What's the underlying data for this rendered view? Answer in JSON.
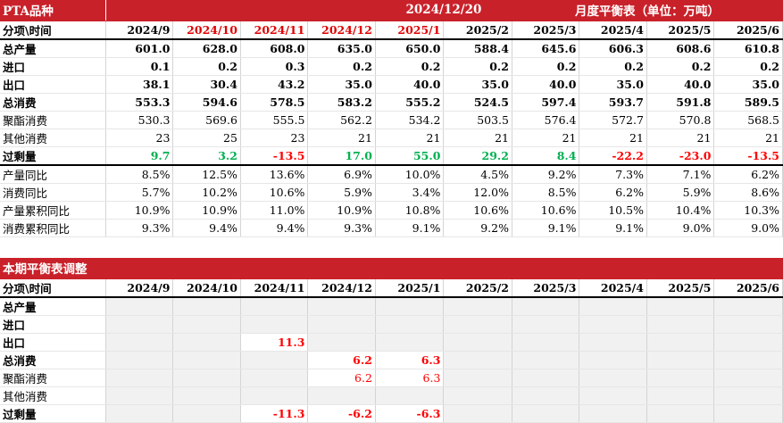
{
  "top": {
    "title": "PTA品种",
    "date": "2024/12/20",
    "subtitle": "月度平衡表（单位：万吨）",
    "header_label": "分项\\时间",
    "months": [
      "2024/9",
      "2024/10",
      "2024/11",
      "2024/12",
      "2025/1",
      "2025/2",
      "2025/3",
      "2025/4",
      "2025/5",
      "2025/6"
    ],
    "rows": [
      {
        "label": "总产量",
        "values": [
          "601.0",
          "628.0",
          "608.0",
          "635.0",
          "650.0",
          "588.4",
          "645.6",
          "606.3",
          "608.6",
          "610.8"
        ]
      },
      {
        "label": "进口",
        "values": [
          "0.1",
          "0.2",
          "0.3",
          "0.2",
          "0.2",
          "0.2",
          "0.2",
          "0.2",
          "0.2",
          "0.2"
        ]
      },
      {
        "label": "出口",
        "values": [
          "38.1",
          "30.4",
          "43.2",
          "35.0",
          "40.0",
          "35.0",
          "40.0",
          "35.0",
          "40.0",
          "35.0"
        ]
      },
      {
        "label": "总消费",
        "values": [
          "553.3",
          "594.6",
          "578.5",
          "583.2",
          "555.2",
          "524.5",
          "597.4",
          "593.7",
          "591.8",
          "589.5"
        ]
      },
      {
        "label": "聚酯消费",
        "values": [
          "530.3",
          "569.6",
          "555.5",
          "562.2",
          "534.2",
          "503.5",
          "576.4",
          "572.7",
          "570.8",
          "568.5"
        ]
      },
      {
        "label": "其他消费",
        "values": [
          "23",
          "25",
          "23",
          "21",
          "21",
          "21",
          "21",
          "21",
          "21",
          "21"
        ]
      },
      {
        "label": "过剩量",
        "values": [
          "9.7",
          "3.2",
          "-13.5",
          "17.0",
          "55.0",
          "29.2",
          "8.4",
          "-22.2",
          "-23.0",
          "-13.5"
        ]
      },
      {
        "label": "产量同比",
        "values": [
          "8.5%",
          "12.5%",
          "13.6%",
          "6.9%",
          "10.0%",
          "4.5%",
          "9.2%",
          "7.3%",
          "7.1%",
          "6.2%"
        ]
      },
      {
        "label": "消费同比",
        "values": [
          "5.7%",
          "10.2%",
          "10.6%",
          "5.9%",
          "3.4%",
          "12.0%",
          "8.5%",
          "6.2%",
          "5.9%",
          "8.6%"
        ]
      },
      {
        "label": "产量累积同比",
        "values": [
          "10.9%",
          "10.9%",
          "11.0%",
          "10.9%",
          "10.8%",
          "10.6%",
          "10.6%",
          "10.5%",
          "10.4%",
          "10.3%"
        ]
      },
      {
        "label": "消费累积同比",
        "values": [
          "9.3%",
          "9.4%",
          "9.4%",
          "9.3%",
          "9.1%",
          "9.2%",
          "9.1%",
          "9.1%",
          "9.0%",
          "9.0%"
        ]
      }
    ]
  },
  "adjust": {
    "title": "本期平衡表调整",
    "header_label": "分项\\时间",
    "months": [
      "2024/9",
      "2024/10",
      "2024/11",
      "2024/12",
      "2025/1",
      "2025/2",
      "2025/3",
      "2025/4",
      "2025/5",
      "2025/6"
    ],
    "rows": [
      {
        "label": "总产量",
        "values": [
          "",
          "",
          "",
          "",
          "",
          "",
          "",
          "",
          "",
          ""
        ]
      },
      {
        "label": "进口",
        "values": [
          "",
          "",
          "",
          "",
          "",
          "",
          "",
          "",
          "",
          ""
        ]
      },
      {
        "label": "出口",
        "values": [
          "",
          "",
          "11.3",
          "",
          "",
          "",
          "",
          "",
          "",
          ""
        ]
      },
      {
        "label": "总消费",
        "values": [
          "",
          "",
          "",
          "6.2",
          "6.3",
          "",
          "",
          "",
          "",
          ""
        ]
      },
      {
        "label": "聚酯消费",
        "values": [
          "",
          "",
          "",
          "6.2",
          "6.3",
          "",
          "",
          "",
          "",
          ""
        ]
      },
      {
        "label": "其他消费",
        "values": [
          "",
          "",
          "",
          "",
          "",
          "",
          "",
          "",
          "",
          ""
        ]
      },
      {
        "label": "过剩量",
        "values": [
          "",
          "",
          "-11.3",
          "-6.2",
          "-6.3",
          "",
          "",
          "",
          "",
          ""
        ]
      }
    ]
  },
  "colors": {
    "banner": "#c9212a",
    "negative": "#ff0000",
    "positive": "#00b050",
    "header_red": "#e00000"
  }
}
